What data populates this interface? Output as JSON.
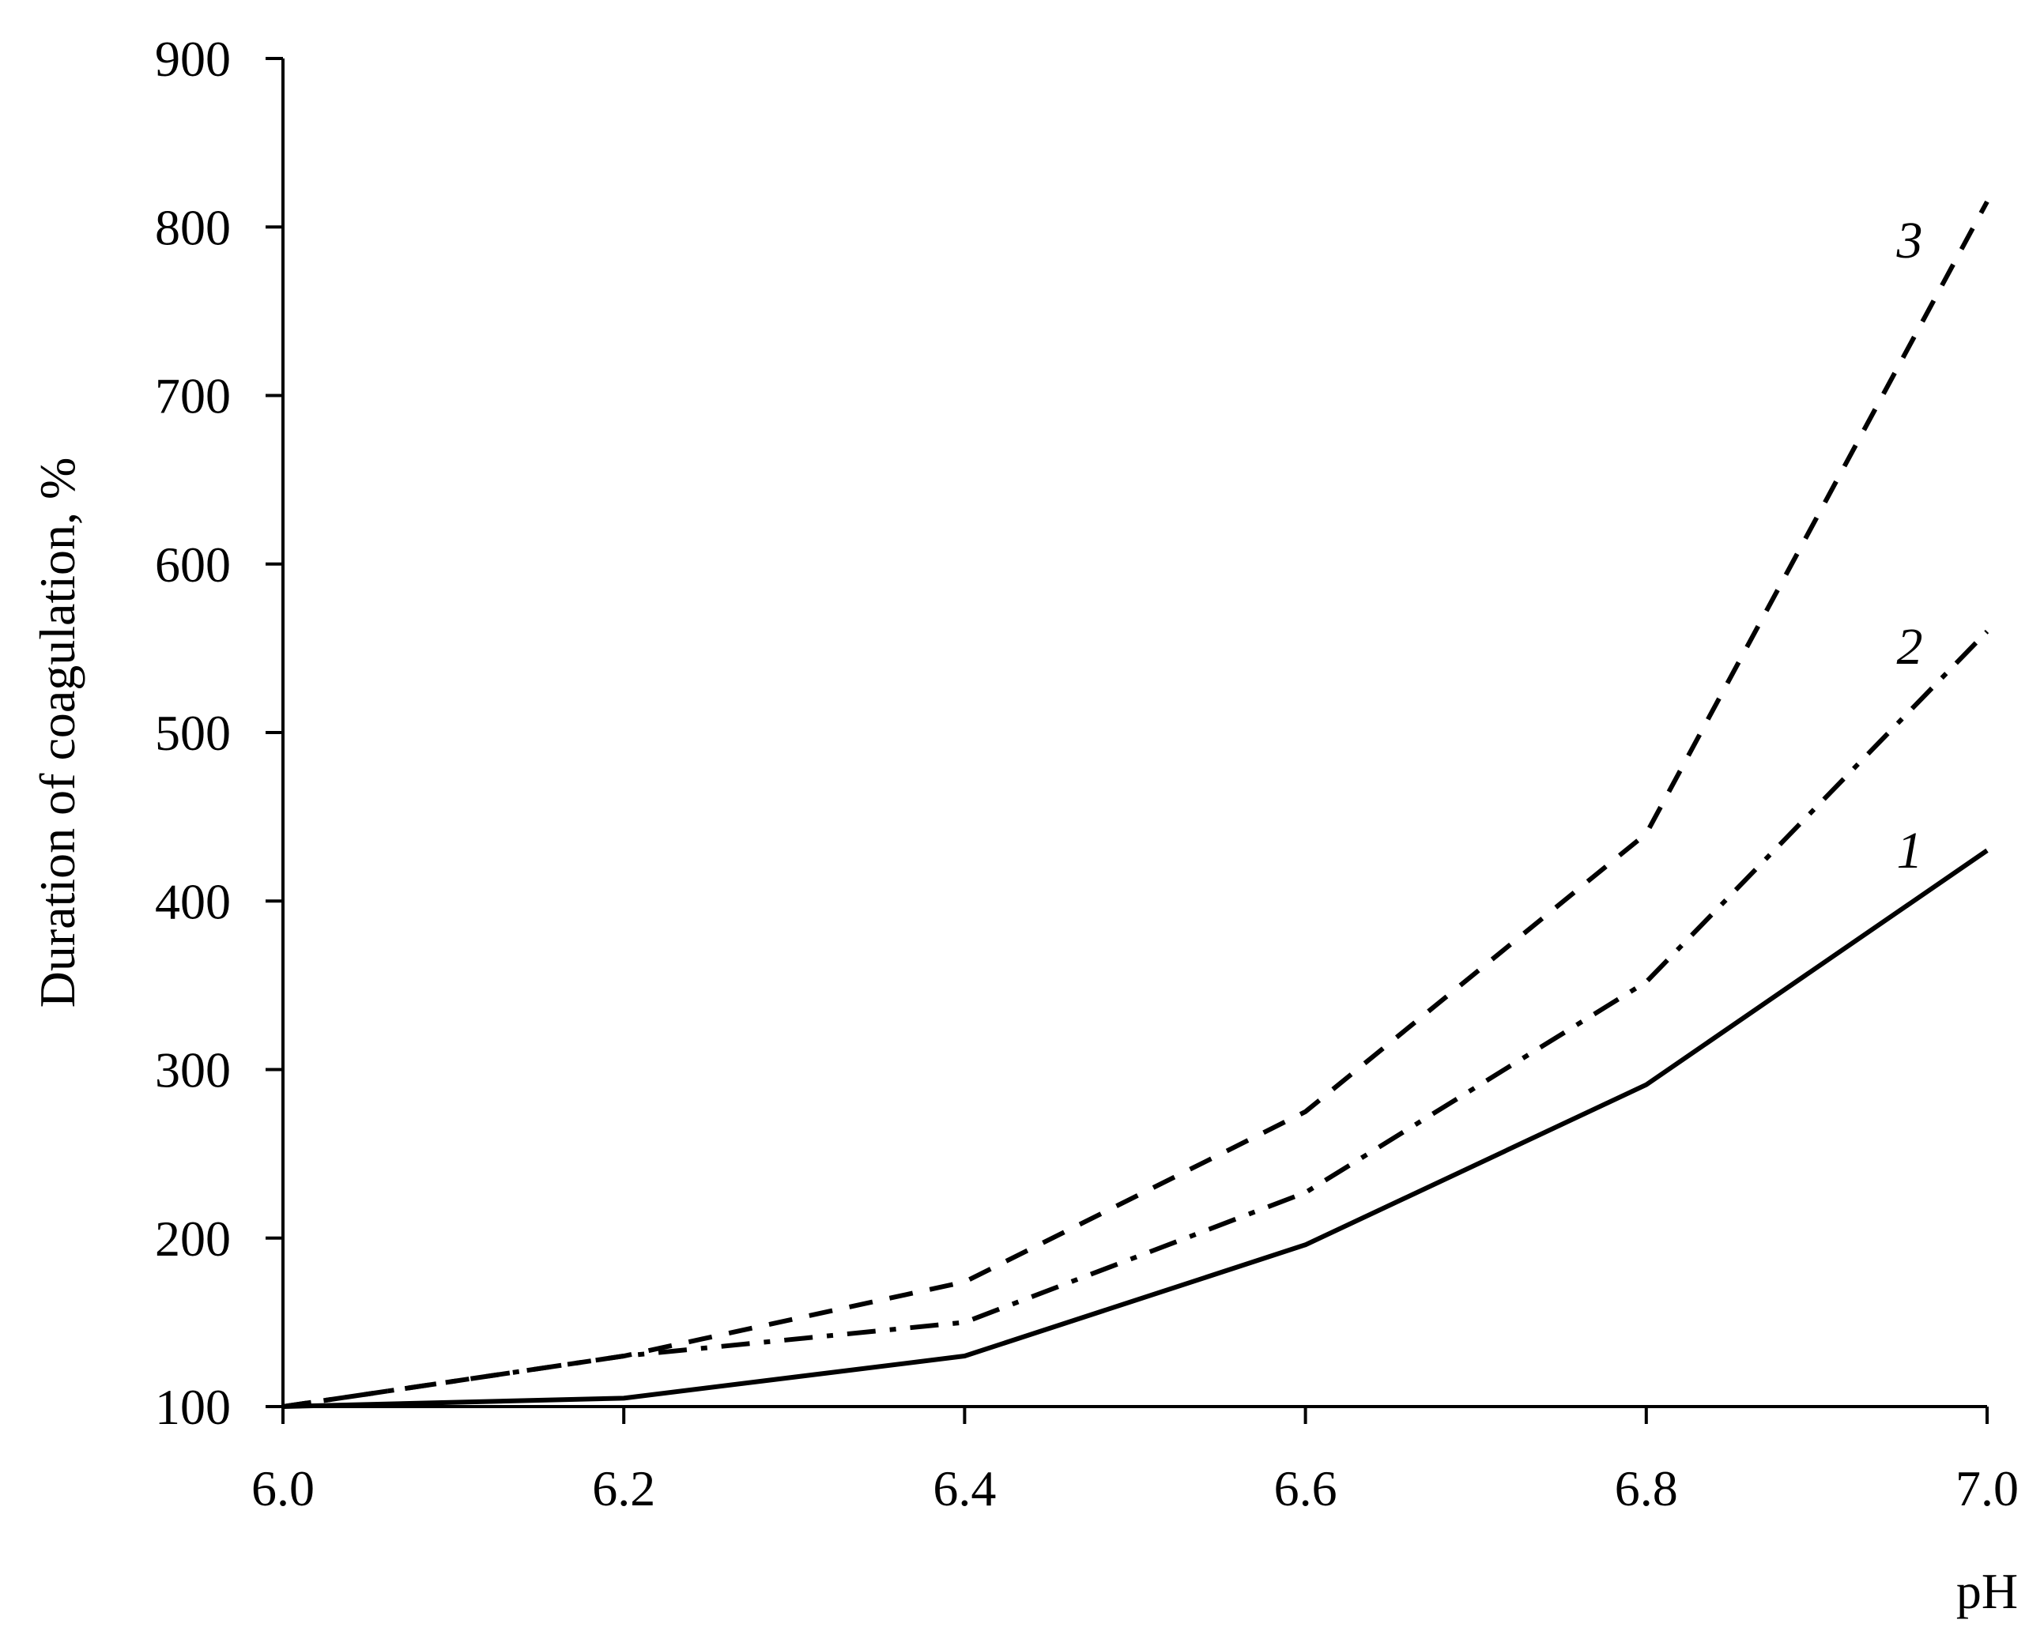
{
  "chart_data": {
    "type": "line",
    "title": "",
    "xlabel": "pH",
    "ylabel": "Duration of coagulation, %",
    "xlim": [
      6.0,
      7.0
    ],
    "ylim": [
      100,
      900
    ],
    "x": [
      6.0,
      6.2,
      6.4,
      6.6,
      6.8,
      7.0
    ],
    "x_tick_labels": [
      "6.0",
      "6.2",
      "6.4",
      "6.6",
      "6.8",
      "7.0"
    ],
    "y_ticks": [
      100,
      200,
      300,
      400,
      500,
      600,
      700,
      800,
      900
    ],
    "y_tick_labels": [
      "100",
      "200",
      "300",
      "400",
      "500",
      "600",
      "700",
      "800",
      "900"
    ],
    "grid": false,
    "legend": "none",
    "series": [
      {
        "label": "1",
        "style": "solid",
        "values": [
          100,
          105,
          130,
          196,
          291,
          430
        ]
      },
      {
        "label": "2",
        "style": "dash-dot",
        "values": [
          100,
          130,
          150,
          227,
          352,
          560
        ]
      },
      {
        "label": "3",
        "style": "dashed",
        "values": [
          100,
          130,
          174,
          275,
          440,
          815
        ]
      }
    ]
  }
}
